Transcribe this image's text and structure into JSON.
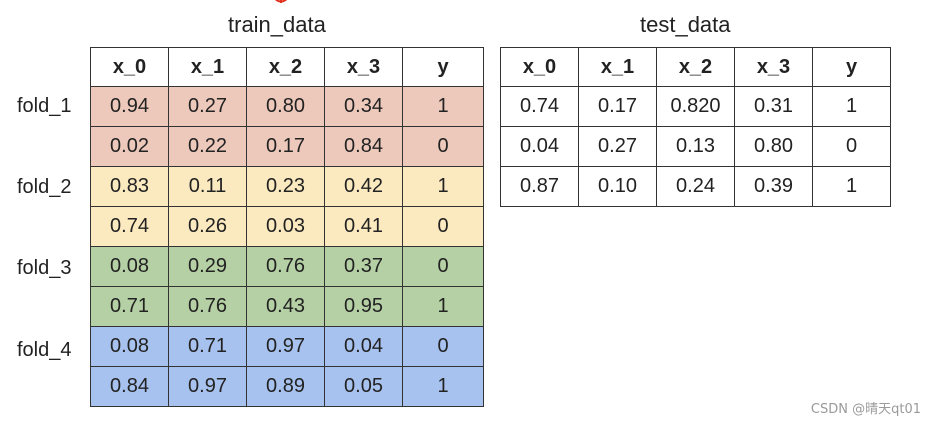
{
  "train": {
    "title": "train_data",
    "headers": [
      "x_0",
      "x_1",
      "x_2",
      "x_3",
      "y"
    ],
    "rows": [
      {
        "cells": [
          "0.94",
          "0.27",
          "0.80",
          "0.34",
          "1"
        ],
        "color": "#ecc9bb"
      },
      {
        "cells": [
          "0.02",
          "0.22",
          "0.17",
          "0.84",
          "0"
        ],
        "color": "#ecc9bb"
      },
      {
        "cells": [
          "0.83",
          "0.11",
          "0.23",
          "0.42",
          "1"
        ],
        "color": "#fbe9c0"
      },
      {
        "cells": [
          "0.74",
          "0.26",
          "0.03",
          "0.41",
          "0"
        ],
        "color": "#fbe9c0"
      },
      {
        "cells": [
          "0.08",
          "0.29",
          "0.76",
          "0.37",
          "0"
        ],
        "color": "#b5d0a4"
      },
      {
        "cells": [
          "0.71",
          "0.76",
          "0.43",
          "0.95",
          "1"
        ],
        "color": "#b5d0a4"
      },
      {
        "cells": [
          "0.08",
          "0.71",
          "0.97",
          "0.04",
          "0"
        ],
        "color": "#a7c2ee"
      },
      {
        "cells": [
          "0.84",
          "0.97",
          "0.89",
          "0.05",
          "1"
        ],
        "color": "#a7c2ee"
      }
    ],
    "folds": [
      "fold_1",
      "fold_2",
      "fold_3",
      "fold_4"
    ]
  },
  "test": {
    "title": "test_data",
    "headers": [
      "x_0",
      "x_1",
      "x_2",
      "x_3",
      "y"
    ],
    "rows": [
      [
        "0.74",
        "0.17",
        "0.820",
        "0.31",
        "1"
      ],
      [
        "0.04",
        "0.27",
        "0.13",
        "0.80",
        "0"
      ],
      [
        "0.87",
        "0.10",
        "0.24",
        "0.39",
        "1"
      ]
    ]
  },
  "watermark": "CSDN @晴天qt01"
}
